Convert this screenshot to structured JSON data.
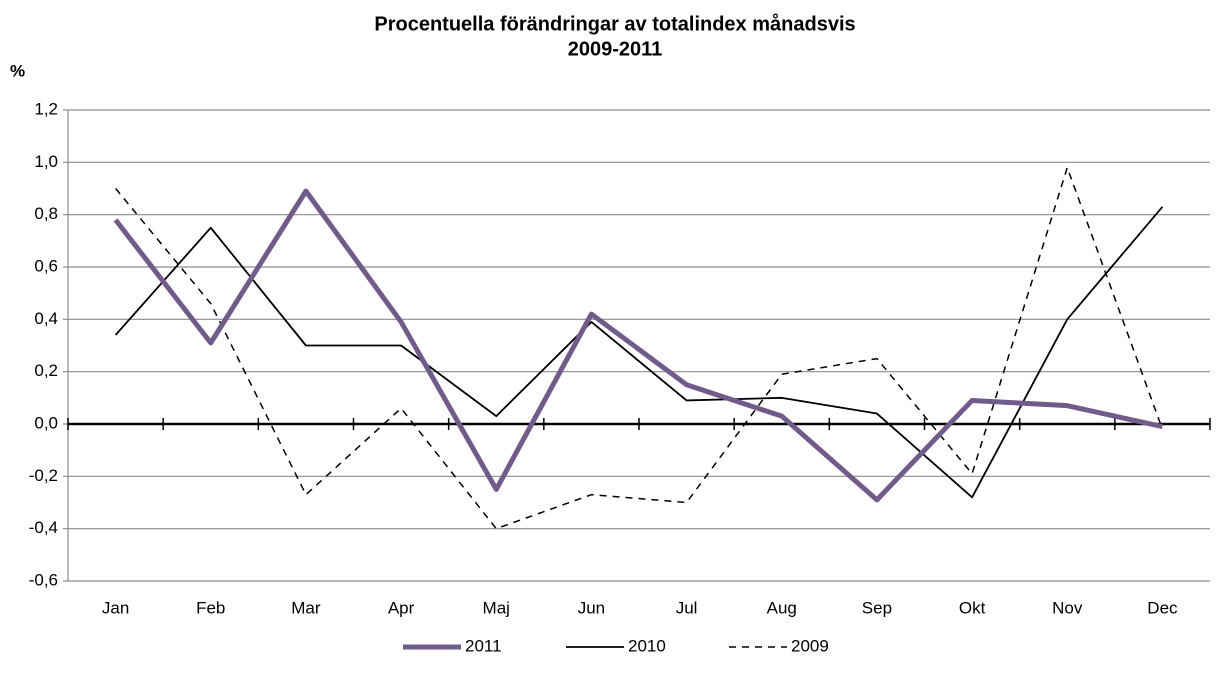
{
  "chart_data": {
    "type": "line",
    "title": "Procentuella förändringar av totalindex månadsvis",
    "subtitle": "2009-2011",
    "y_label": "%",
    "categories": [
      "Jan",
      "Feb",
      "Mar",
      "Apr",
      "Maj",
      "Jun",
      "Jul",
      "Aug",
      "Sep",
      "Okt",
      "Nov",
      "Dec"
    ],
    "series": [
      {
        "name": "2011",
        "color": "#705b8b",
        "width": 5,
        "dash": false,
        "values": [
          0.78,
          0.31,
          0.89,
          0.39,
          -0.25,
          0.42,
          0.15,
          0.03,
          -0.29,
          0.09,
          0.07,
          -0.01
        ]
      },
      {
        "name": "2010",
        "color": "#000000",
        "width": 1.8,
        "dash": false,
        "values": [
          0.34,
          0.75,
          0.3,
          0.3,
          0.03,
          0.39,
          0.09,
          0.1,
          0.04,
          -0.28,
          0.4,
          0.83
        ]
      },
      {
        "name": "2009",
        "color": "#000000",
        "width": 1.5,
        "dash": true,
        "values": [
          0.9,
          0.46,
          -0.27,
          0.06,
          -0.4,
          -0.27,
          -0.3,
          0.19,
          0.25,
          -0.19,
          0.98,
          -0.02
        ]
      }
    ],
    "ylim": [
      -0.6,
      1.2
    ],
    "yticks": [
      {
        "value": -0.6,
        "label": "-0,6"
      },
      {
        "value": -0.4,
        "label": "-0,4"
      },
      {
        "value": -0.2,
        "label": "-0,2"
      },
      {
        "value": 0,
        "label": "0,0"
      },
      {
        "value": 0.2,
        "label": "0,2"
      },
      {
        "value": 0.4,
        "label": "0,4"
      },
      {
        "value": 0.6,
        "label": "0,6"
      },
      {
        "value": 0.8,
        "label": "0,8"
      },
      {
        "value": 1.0,
        "label": "1,0"
      },
      {
        "value": 1.2,
        "label": "1,2"
      }
    ],
    "grid": true,
    "legend": "bottom"
  }
}
